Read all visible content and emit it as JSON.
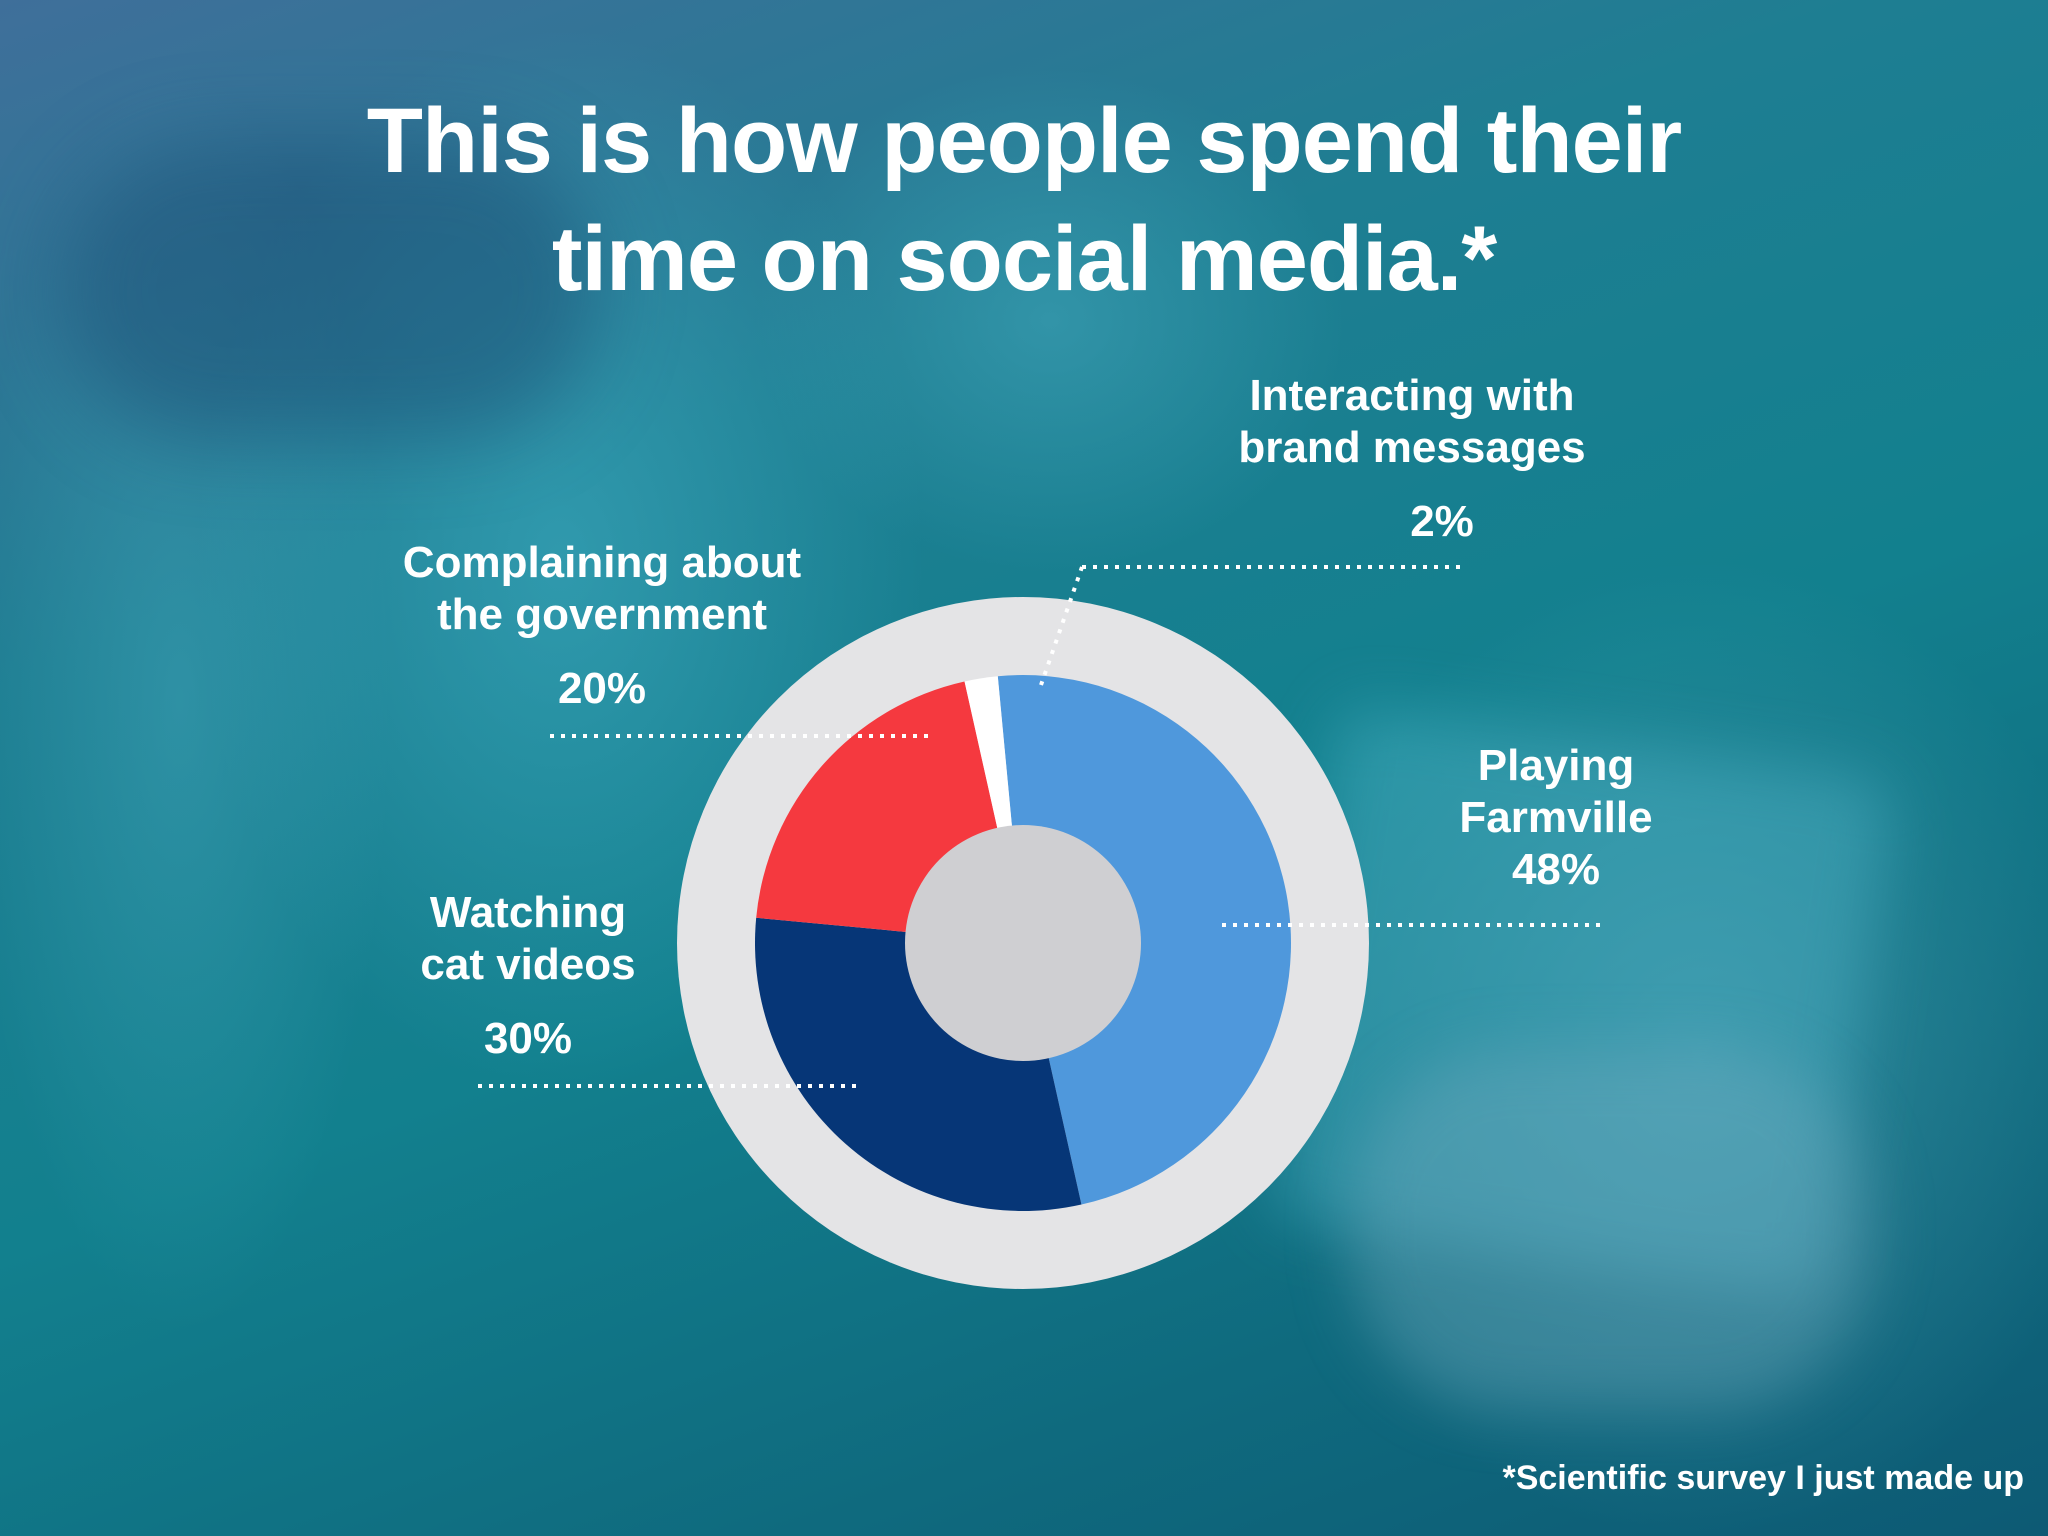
{
  "title": {
    "line1": "This is how people spend their",
    "line2": "time on social media.*"
  },
  "footnote": "*Scientific survey I just made up",
  "chart_data": {
    "type": "pie",
    "title": "This is how people spend their time on social media.*",
    "slices": [
      {
        "label_line1": "Playing",
        "label_line2": "Farmville",
        "value": 48,
        "value_label": "48%",
        "color": "#4f98dc"
      },
      {
        "label_line1": "Watching",
        "label_line2": "cat videos",
        "value": 30,
        "value_label": "30%",
        "color": "#063677"
      },
      {
        "label_line1": "Complaining about",
        "label_line2": "the government",
        "value": 20,
        "value_label": "20%",
        "color": "#f5393f"
      },
      {
        "label_line1": "Interacting with",
        "label_line2": "brand messages",
        "value": 2,
        "value_label": "2%",
        "color": "#ffffff"
      }
    ],
    "ring_color": "#e4e4e6",
    "hole_color": "#cfcfd2"
  }
}
